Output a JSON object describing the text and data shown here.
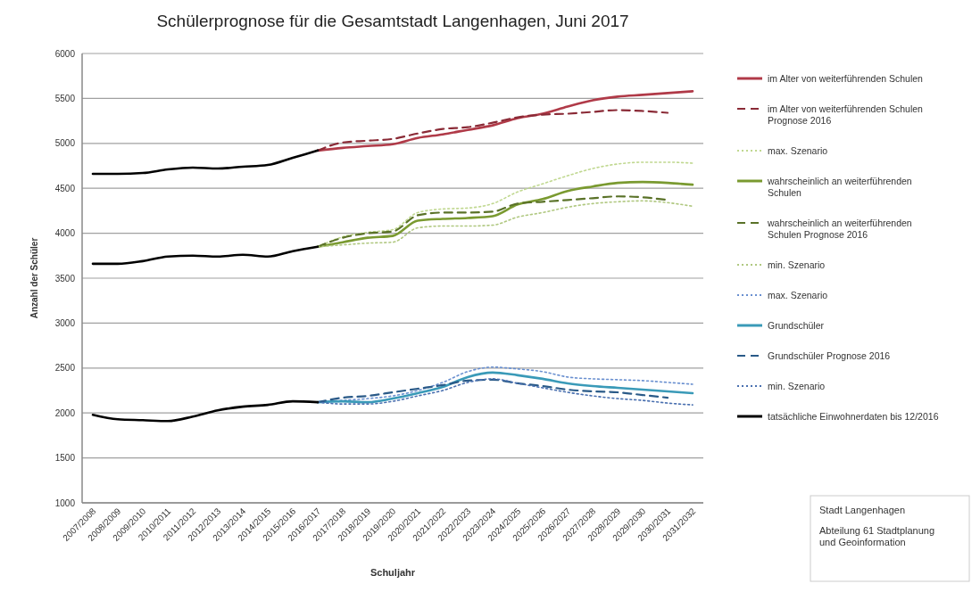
{
  "chart_data": {
    "type": "line",
    "title": "Schülerprognose für die Gesamtstadt Langenhagen, Juni 2017",
    "xlabel": "Schuljahr",
    "ylabel": "Anzahl der Schüler",
    "categories": [
      "2007/2008",
      "2008/2009",
      "2009/2010",
      "2010/2011",
      "2011/2012",
      "2012/2013",
      "2013/2014",
      "2014/2015",
      "2015/2016",
      "2016/2017",
      "2017/2018",
      "2018/2019",
      "2019/2020",
      "2020/2021",
      "2021/2022",
      "2022/2023",
      "2023/2024",
      "2024/2025",
      "2025/2026",
      "2026/2027",
      "2027/2028",
      "2028/2029",
      "2029/2030",
      "2030/2031",
      "2031/2032"
    ],
    "ylim": [
      1000,
      6000
    ],
    "yticks": [
      1000,
      1500,
      2000,
      2500,
      3000,
      3500,
      4000,
      4500,
      5000,
      5500,
      6000
    ],
    "grid": "y",
    "legend": "right",
    "marker": "none",
    "series": [
      {
        "name": "im Alter von weiterführenden Schulen",
        "color": "#b03a48",
        "line_style": "solid",
        "values": [
          null,
          null,
          null,
          null,
          null,
          null,
          null,
          null,
          null,
          4920,
          4950,
          4970,
          4990,
          5060,
          5100,
          5150,
          5200,
          5280,
          5330,
          5410,
          5480,
          5520,
          5540,
          5560,
          5580
        ]
      },
      {
        "name": "im Alter von weiterführenden Schulen Prognose 2016",
        "color": "#8a2a36",
        "line_style": "dashed",
        "values": [
          null,
          null,
          null,
          null,
          null,
          null,
          null,
          null,
          null,
          4920,
          5010,
          5030,
          5050,
          5110,
          5160,
          5180,
          5230,
          5290,
          5320,
          5330,
          5350,
          5370,
          5360,
          5340,
          null
        ]
      },
      {
        "name": "max. Szenario",
        "color": "#c0d890",
        "line_style": "dotted",
        "values": [
          null,
          null,
          null,
          null,
          null,
          null,
          null,
          null,
          null,
          3850,
          3960,
          4010,
          4040,
          4230,
          4270,
          4280,
          4330,
          4460,
          4550,
          4640,
          4720,
          4770,
          4790,
          4790,
          4780
        ]
      },
      {
        "name": "wahrscheinlich an weiterführenden Schulen",
        "color": "#7a9a30",
        "line_style": "solid",
        "values": [
          null,
          null,
          null,
          null,
          null,
          null,
          null,
          null,
          null,
          3850,
          3900,
          3950,
          3970,
          4140,
          4160,
          4170,
          4190,
          4320,
          4380,
          4470,
          4520,
          4560,
          4570,
          4560,
          4540
        ]
      },
      {
        "name": "wahrscheinlich an weiterführenden Schulen Prognose 2016",
        "color": "#5a7228",
        "line_style": "dashed",
        "values": [
          null,
          null,
          null,
          null,
          null,
          null,
          null,
          null,
          null,
          3850,
          3950,
          4000,
          4020,
          4200,
          4230,
          4230,
          4240,
          4330,
          4350,
          4370,
          4390,
          4410,
          4400,
          4370,
          null
        ]
      },
      {
        "name": "min. Szenario",
        "color": "#b0c880",
        "line_style": "dotted",
        "values": [
          null,
          null,
          null,
          null,
          null,
          null,
          null,
          null,
          null,
          3850,
          3870,
          3890,
          3900,
          4060,
          4080,
          4080,
          4090,
          4180,
          4230,
          4290,
          4330,
          4350,
          4360,
          4340,
          4300
        ]
      },
      {
        "name": "max. Szenario",
        "color": "#6a90d0",
        "line_style": "dotted",
        "values": [
          null,
          null,
          null,
          null,
          null,
          null,
          null,
          null,
          null,
          2120,
          2140,
          2160,
          2190,
          2250,
          2340,
          2460,
          2510,
          2490,
          2460,
          2400,
          2380,
          2370,
          2360,
          2340,
          2320
        ]
      },
      {
        "name": "Grundschüler",
        "color": "#3a9ab8",
        "line_style": "solid",
        "values": [
          null,
          null,
          null,
          null,
          null,
          null,
          null,
          null,
          null,
          2120,
          2130,
          2120,
          2160,
          2220,
          2290,
          2400,
          2450,
          2420,
          2380,
          2330,
          2300,
          2280,
          2260,
          2240,
          2220
        ]
      },
      {
        "name": "Grundschüler Prognose 2016",
        "color": "#2a5a88",
        "line_style": "dashed",
        "values": [
          null,
          null,
          null,
          null,
          null,
          null,
          null,
          null,
          null,
          2120,
          2170,
          2190,
          2230,
          2270,
          2310,
          2360,
          2370,
          2330,
          2300,
          2260,
          2240,
          2230,
          2200,
          2170,
          null
        ]
      },
      {
        "name": "min. Szenario",
        "color": "#4a70b0",
        "line_style": "dotted",
        "values": [
          null,
          null,
          null,
          null,
          null,
          null,
          null,
          null,
          null,
          2120,
          2100,
          2100,
          2130,
          2190,
          2250,
          2340,
          2380,
          2330,
          2280,
          2230,
          2190,
          2160,
          2140,
          2110,
          2090
        ]
      },
      {
        "name": "tatsächliche Einwohnerdaten bis 12/2016",
        "color": "#000000",
        "line_style": "solid",
        "values": [
          4660,
          4660,
          4670,
          4710,
          4730,
          4720,
          4740,
          4760,
          4840,
          4920,
          null,
          null,
          null,
          null,
          null,
          null,
          null,
          null,
          null,
          null,
          null,
          null,
          null,
          null,
          null
        ]
      },
      {
        "color": "#000000",
        "line_style": "solid",
        "values": [
          3660,
          3660,
          3690,
          3740,
          3750,
          3740,
          3760,
          3740,
          3800,
          3850,
          null,
          null,
          null,
          null,
          null,
          null,
          null,
          null,
          null,
          null,
          null,
          null,
          null,
          null,
          null
        ]
      },
      {
        "color": "#000000",
        "line_style": "solid",
        "values": [
          1980,
          1930,
          1920,
          1910,
          1960,
          2030,
          2070,
          2090,
          2130,
          2120,
          null,
          null,
          null,
          null,
          null,
          null,
          null,
          null,
          null,
          null,
          null,
          null,
          null,
          null,
          null
        ]
      }
    ],
    "annotations": [
      "Stadt Langenhagen",
      "Abteilung 61 Stadtplanung und Geoinformation"
    ]
  }
}
